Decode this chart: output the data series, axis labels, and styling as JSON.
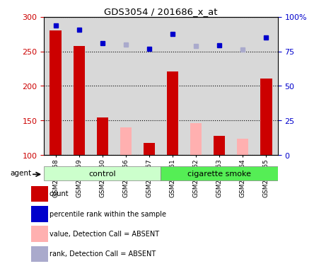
{
  "title": "GDS3054 / 201686_x_at",
  "samples": [
    "GSM227858",
    "GSM227859",
    "GSM227860",
    "GSM227866",
    "GSM227867",
    "GSM227861",
    "GSM227862",
    "GSM227863",
    "GSM227864",
    "GSM227865"
  ],
  "groups": [
    "control",
    "control",
    "control",
    "control",
    "control",
    "cigarette smoke",
    "cigarette smoke",
    "cigarette smoke",
    "cigarette smoke",
    "cigarette smoke"
  ],
  "count_values": [
    280,
    258,
    155,
    null,
    118,
    221,
    null,
    128,
    null,
    211
  ],
  "count_absent": [
    null,
    null,
    null,
    140,
    null,
    null,
    146,
    null,
    124,
    null
  ],
  "rank_present": [
    287,
    281,
    262,
    null,
    254,
    275,
    null,
    259,
    null,
    270
  ],
  "rank_absent": [
    null,
    null,
    null,
    260,
    null,
    null,
    258,
    null,
    253,
    null
  ],
  "ylim_left": [
    100,
    300
  ],
  "ylim_right": [
    0,
    100
  ],
  "yticks_left": [
    100,
    150,
    200,
    250,
    300
  ],
  "yticks_right": [
    0,
    25,
    50,
    75,
    100
  ],
  "yticklabels_right": [
    "0",
    "25",
    "50",
    "75",
    "100%"
  ],
  "color_count": "#cc0000",
  "color_rank": "#0000cc",
  "color_count_absent": "#ffb0b0",
  "color_rank_absent": "#aaaacc",
  "legend_items": [
    {
      "color": "#cc0000",
      "label": "count"
    },
    {
      "color": "#0000cc",
      "label": "percentile rank within the sample"
    },
    {
      "color": "#ffb0b0",
      "label": "value, Detection Call = ABSENT"
    },
    {
      "color": "#aaaacc",
      "label": "rank, Detection Call = ABSENT"
    }
  ],
  "col_bg": "#d8d8d8",
  "ctrl_color": "#ccffcc",
  "smoke_color": "#55ee55",
  "bar_width": 0.5
}
